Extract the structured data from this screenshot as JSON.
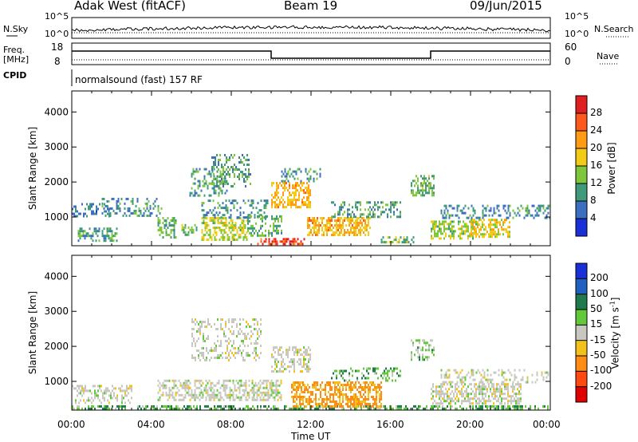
{
  "header": {
    "station": "Adak West (fitACF)",
    "beam": "Beam 19",
    "date": "09/Jun/2015"
  },
  "strip_labels": {
    "nsky": "N.Sky",
    "nsky_top": "10^5",
    "nsky_bottom": "10^0",
    "nsearch": "N.Search",
    "nsearch_top": "10^5",
    "nsearch_bottom": "10^0",
    "freq_line1": "Freq.",
    "freq_line2": "[MHz]",
    "freq_top": "18",
    "freq_bottom": "8",
    "nave": "Nave",
    "nave_top": "60",
    "nave_bottom": "0",
    "cpid": "CPID",
    "cpid_text": "normalsound (fast) 157 RF"
  },
  "panels": {
    "power": {
      "ylabel": "Slant Range [km]",
      "cbar_label": "Power [dB]",
      "cbar_ticks": [
        "28",
        "24",
        "20",
        "16",
        "12",
        "8",
        "4"
      ]
    },
    "velocity": {
      "ylabel": "Slant Range [km]",
      "cbar_label": "Velocity [m s",
      "cbar_label_sup": "-1",
      "cbar_label_end": "]",
      "cbar_ticks": [
        "200",
        "100",
        "50",
        "15",
        "-15",
        "-50",
        "-100",
        "-200"
      ]
    }
  },
  "xaxis": {
    "label": "Time UT",
    "ticks": [
      "00:00",
      "04:00",
      "08:00",
      "12:00",
      "16:00",
      "20:00",
      "00:00"
    ]
  },
  "colors": {
    "power_scale": [
      "#e02020",
      "#ff5a1e",
      "#ff9c14",
      "#f2cc14",
      "#7fc63a",
      "#3f9a7a",
      "#3c6fc0",
      "#1a2fd6"
    ],
    "velocity_scale": [
      "#1a2fd6",
      "#2060c0",
      "#1f7a4c",
      "#62c93a",
      "#c8c8c0",
      "#f2c21a",
      "#ff8c14",
      "#ff4a10",
      "#e00000"
    ]
  },
  "chart_data": [
    {
      "type": "heatmap",
      "title": "Adak West (fitACF) Beam 19 09/Jun/2015",
      "xlabel": "Time UT",
      "ylabel": "Slant Range [km]",
      "x_ticks": [
        "00:00",
        "04:00",
        "08:00",
        "12:00",
        "16:00",
        "20:00",
        "00:00"
      ],
      "xlim": [
        0,
        24
      ],
      "ylim": [
        180,
        4600
      ],
      "y_ticks": [
        1000,
        2000,
        3000,
        4000
      ],
      "colorbar": {
        "label": "Power [dB]",
        "ticks": [
          4,
          8,
          12,
          16,
          20,
          24,
          28
        ],
        "range": [
          0,
          30
        ]
      },
      "regions": [
        {
          "t": [
            0.0,
            1.9
          ],
          "range": [
            1000,
            1400
          ],
          "level": 7,
          "density": 0.35
        },
        {
          "t": [
            0.3,
            2.3
          ],
          "range": [
            350,
            700
          ],
          "level": 10,
          "density": 0.45
        },
        {
          "t": [
            1.5,
            4.5
          ],
          "range": [
            1050,
            1550
          ],
          "level": 9,
          "density": 0.3
        },
        {
          "t": [
            4.3,
            5.2
          ],
          "range": [
            450,
            1000
          ],
          "level": 11,
          "density": 0.5
        },
        {
          "t": [
            5.5,
            6.3
          ],
          "range": [
            500,
            800
          ],
          "level": 12,
          "density": 0.5
        },
        {
          "t": [
            5.9,
            7.8
          ],
          "range": [
            1600,
            2400
          ],
          "level": 10,
          "density": 0.3
        },
        {
          "t": [
            6.5,
            8.8
          ],
          "range": [
            380,
            1000
          ],
          "level": 15,
          "density": 0.55
        },
        {
          "t": [
            6.5,
            9.8
          ],
          "range": [
            1000,
            1500
          ],
          "level": 8,
          "density": 0.3
        },
        {
          "t": [
            7.0,
            9.0
          ],
          "range": [
            1900,
            2800
          ],
          "level": 10,
          "density": 0.35
        },
        {
          "t": [
            8.8,
            10.5
          ],
          "range": [
            500,
            1050
          ],
          "level": 11,
          "density": 0.4
        },
        {
          "t": [
            9.3,
            11.7
          ],
          "range": [
            230,
            400
          ],
          "level": 26,
          "density": 0.55
        },
        {
          "t": [
            10.0,
            12.0
          ],
          "range": [
            1300,
            2000
          ],
          "level": 19,
          "density": 0.55
        },
        {
          "t": [
            10.5,
            12.5
          ],
          "range": [
            2000,
            2400
          ],
          "level": 9,
          "density": 0.3
        },
        {
          "t": [
            11.8,
            15.0
          ],
          "range": [
            500,
            1000
          ],
          "level": 19,
          "density": 0.6
        },
        {
          "t": [
            13.0,
            16.5
          ],
          "range": [
            1000,
            1450
          ],
          "level": 10,
          "density": 0.35
        },
        {
          "t": [
            15.5,
            17.2
          ],
          "range": [
            250,
            450
          ],
          "level": 12,
          "density": 0.45
        },
        {
          "t": [
            17.0,
            18.2
          ],
          "range": [
            1600,
            2200
          ],
          "level": 12,
          "density": 0.5
        },
        {
          "t": [
            18.0,
            20.3
          ],
          "range": [
            400,
            900
          ],
          "level": 14,
          "density": 0.55
        },
        {
          "t": [
            20.0,
            22.0
          ],
          "range": [
            450,
            950
          ],
          "level": 17,
          "density": 0.55
        },
        {
          "t": [
            18.5,
            24.0
          ],
          "range": [
            950,
            1350
          ],
          "level": 8,
          "density": 0.35
        }
      ]
    },
    {
      "type": "heatmap",
      "title": "",
      "xlabel": "Time UT",
      "ylabel": "Slant Range [km]",
      "x_ticks": [
        "00:00",
        "04:00",
        "08:00",
        "12:00",
        "16:00",
        "20:00",
        "00:00"
      ],
      "xlim": [
        0,
        24
      ],
      "ylim": [
        180,
        4600
      ],
      "y_ticks": [
        1000,
        2000,
        3000,
        4000
      ],
      "colorbar": {
        "label": "Velocity [m s-1]",
        "ticks": [
          200,
          100,
          50,
          15,
          -15,
          -50,
          -100,
          -200
        ],
        "range": [
          -250,
          250
        ]
      },
      "regions": [
        {
          "t": [
            0.0,
            3.0
          ],
          "range": [
            400,
            900
          ],
          "velocity": 0,
          "density": 0.4
        },
        {
          "t": [
            0.0,
            24.0
          ],
          "range": [
            200,
            320
          ],
          "velocity": 30,
          "density": 0.55
        },
        {
          "t": [
            4.3,
            10.5
          ],
          "range": [
            450,
            1050
          ],
          "velocity": 0,
          "density": 0.5
        },
        {
          "t": [
            6.0,
            9.5
          ],
          "range": [
            1600,
            2800
          ],
          "velocity": 0,
          "density": 0.3
        },
        {
          "t": [
            10.0,
            12.0
          ],
          "range": [
            1300,
            2000
          ],
          "velocity": 0,
          "density": 0.5
        },
        {
          "t": [
            11.0,
            15.5
          ],
          "range": [
            300,
            1000
          ],
          "velocity": -40,
          "density": 0.6
        },
        {
          "t": [
            13.0,
            16.5
          ],
          "range": [
            1000,
            1400
          ],
          "velocity": 30,
          "density": 0.3
        },
        {
          "t": [
            17.0,
            18.2
          ],
          "range": [
            1600,
            2200
          ],
          "velocity": 20,
          "density": 0.4
        },
        {
          "t": [
            18.0,
            22.5
          ],
          "range": [
            400,
            950
          ],
          "velocity": 0,
          "density": 0.55
        },
        {
          "t": [
            18.5,
            24.0
          ],
          "range": [
            950,
            1350
          ],
          "velocity": 0,
          "density": 0.3
        }
      ]
    }
  ]
}
